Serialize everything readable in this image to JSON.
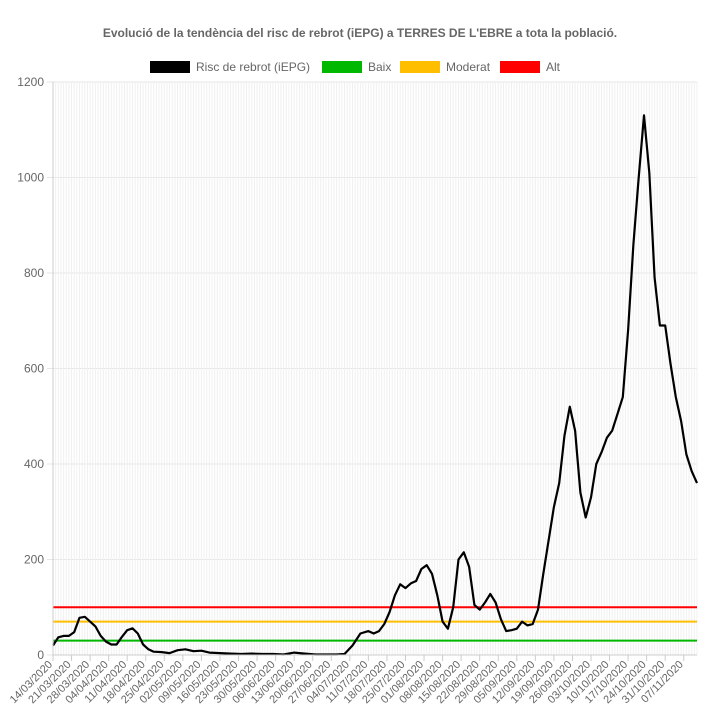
{
  "chart_data": {
    "type": "line",
    "title": "Evolució de la tendència del risc de rebrot (iEPG) a TERRES DE L'EBRE a tota la població.",
    "xlabel": "",
    "ylabel": "",
    "ylim": [
      0,
      1200
    ],
    "yticks": [
      0,
      200,
      400,
      600,
      800,
      1000,
      1200
    ],
    "grid": true,
    "legend_position": "top",
    "x_start": "14/03/2020",
    "x_end": "12/11/2020",
    "x_tick_labels": [
      "14/03/2020",
      "21/03/2020",
      "28/03/2020",
      "04/04/2020",
      "11/04/2020",
      "18/04/2020",
      "25/04/2020",
      "02/05/2020",
      "09/05/2020",
      "16/05/2020",
      "23/05/2020",
      "30/05/2020",
      "06/06/2020",
      "13/06/2020",
      "20/06/2020",
      "27/06/2020",
      "04/07/2020",
      "11/07/2020",
      "18/07/2020",
      "25/07/2020",
      "01/08/2020",
      "08/08/2020",
      "15/08/2020",
      "22/08/2020",
      "29/08/2020",
      "05/09/2020",
      "12/09/2020",
      "19/09/2020",
      "26/09/2020",
      "03/10/2020",
      "10/10/2020",
      "17/10/2020",
      "24/10/2020",
      "31/10/2020",
      "07/11/2020"
    ],
    "series": [
      {
        "name": "Risc de rebrot (iEPG)",
        "color": "#000000",
        "points": [
          [
            "14/03/2020",
            20
          ],
          [
            "16/03/2020",
            37
          ],
          [
            "18/03/2020",
            40
          ],
          [
            "20/03/2020",
            40
          ],
          [
            "22/03/2020",
            48
          ],
          [
            "24/03/2020",
            78
          ],
          [
            "26/03/2020",
            80
          ],
          [
            "28/03/2020",
            70
          ],
          [
            "30/03/2020",
            60
          ],
          [
            "01/04/2020",
            40
          ],
          [
            "03/04/2020",
            28
          ],
          [
            "05/04/2020",
            22
          ],
          [
            "07/04/2020",
            22
          ],
          [
            "09/04/2020",
            38
          ],
          [
            "11/04/2020",
            52
          ],
          [
            "13/04/2020",
            56
          ],
          [
            "15/04/2020",
            45
          ],
          [
            "17/04/2020",
            22
          ],
          [
            "19/04/2020",
            12
          ],
          [
            "21/04/2020",
            7
          ],
          [
            "24/04/2020",
            6
          ],
          [
            "27/04/2020",
            4
          ],
          [
            "30/04/2020",
            10
          ],
          [
            "03/05/2020",
            12
          ],
          [
            "06/05/2020",
            8
          ],
          [
            "09/05/2020",
            9
          ],
          [
            "12/05/2020",
            5
          ],
          [
            "16/05/2020",
            4
          ],
          [
            "20/05/2020",
            3
          ],
          [
            "24/05/2020",
            2
          ],
          [
            "28/05/2020",
            3
          ],
          [
            "01/06/2020",
            2
          ],
          [
            "05/06/2020",
            2
          ],
          [
            "09/06/2020",
            1
          ],
          [
            "13/06/2020",
            5
          ],
          [
            "17/06/2020",
            3
          ],
          [
            "21/06/2020",
            1
          ],
          [
            "25/06/2020",
            1
          ],
          [
            "29/06/2020",
            1
          ],
          [
            "02/07/2020",
            2
          ],
          [
            "05/07/2020",
            20
          ],
          [
            "08/07/2020",
            45
          ],
          [
            "11/07/2020",
            50
          ],
          [
            "13/07/2020",
            45
          ],
          [
            "15/07/2020",
            50
          ],
          [
            "17/07/2020",
            65
          ],
          [
            "19/07/2020",
            90
          ],
          [
            "21/07/2020",
            125
          ],
          [
            "23/07/2020",
            148
          ],
          [
            "25/07/2020",
            140
          ],
          [
            "27/07/2020",
            150
          ],
          [
            "29/07/2020",
            155
          ],
          [
            "31/07/2020",
            180
          ],
          [
            "02/08/2020",
            188
          ],
          [
            "04/08/2020",
            170
          ],
          [
            "06/08/2020",
            125
          ],
          [
            "08/08/2020",
            70
          ],
          [
            "10/08/2020",
            55
          ],
          [
            "12/08/2020",
            100
          ],
          [
            "14/08/2020",
            200
          ],
          [
            "16/08/2020",
            215
          ],
          [
            "18/08/2020",
            185
          ],
          [
            "20/08/2020",
            105
          ],
          [
            "22/08/2020",
            95
          ],
          [
            "24/08/2020",
            110
          ],
          [
            "26/08/2020",
            128
          ],
          [
            "28/08/2020",
            110
          ],
          [
            "30/08/2020",
            75
          ],
          [
            "01/09/2020",
            50
          ],
          [
            "03/09/2020",
            52
          ],
          [
            "05/09/2020",
            55
          ],
          [
            "07/09/2020",
            70
          ],
          [
            "09/09/2020",
            62
          ],
          [
            "11/09/2020",
            65
          ],
          [
            "13/09/2020",
            95
          ],
          [
            "15/09/2020",
            170
          ],
          [
            "17/09/2020",
            240
          ],
          [
            "19/09/2020",
            310
          ],
          [
            "21/09/2020",
            360
          ],
          [
            "23/09/2020",
            460
          ],
          [
            "25/09/2020",
            520
          ],
          [
            "27/09/2020",
            470
          ],
          [
            "29/09/2020",
            340
          ],
          [
            "01/10/2020",
            288
          ],
          [
            "03/10/2020",
            330
          ],
          [
            "05/10/2020",
            400
          ],
          [
            "07/10/2020",
            425
          ],
          [
            "09/10/2020",
            455
          ],
          [
            "11/10/2020",
            470
          ],
          [
            "13/10/2020",
            505
          ],
          [
            "15/10/2020",
            540
          ],
          [
            "17/10/2020",
            680
          ],
          [
            "19/10/2020",
            860
          ],
          [
            "21/10/2020",
            1000
          ],
          [
            "23/10/2020",
            1130
          ],
          [
            "25/10/2020",
            1010
          ],
          [
            "27/10/2020",
            790
          ],
          [
            "29/10/2020",
            690
          ],
          [
            "31/10/2020",
            690
          ],
          [
            "02/11/2020",
            610
          ],
          [
            "04/11/2020",
            540
          ],
          [
            "06/11/2020",
            490
          ],
          [
            "08/11/2020",
            420
          ],
          [
            "10/11/2020",
            385
          ],
          [
            "12/11/2020",
            360
          ]
        ]
      },
      {
        "name": "Baix",
        "color": "#00b800",
        "constant": 30
      },
      {
        "name": "Moderat",
        "color": "#ffbf00",
        "constant": 70
      },
      {
        "name": "Alt",
        "color": "#ff0000",
        "constant": 100
      }
    ]
  }
}
